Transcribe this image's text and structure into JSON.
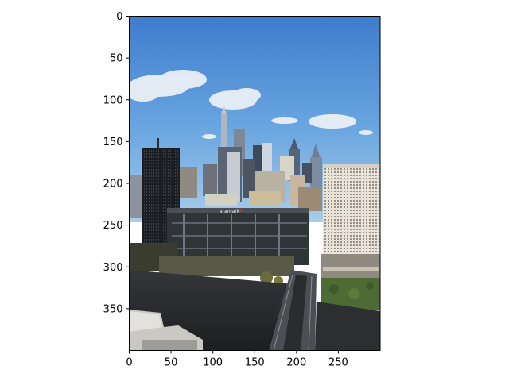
{
  "chart_data": {
    "type": "image",
    "title": "",
    "xlabel": "",
    "ylabel": "",
    "xlim": [
      0,
      300
    ],
    "ylim": [
      400,
      0
    ],
    "y_inverted": true,
    "xticks": [
      0,
      50,
      100,
      150,
      200,
      250
    ],
    "yticks": [
      0,
      50,
      100,
      150,
      200,
      250,
      300,
      350
    ],
    "grid": false,
    "legend": "none"
  },
  "photo": {
    "description_icon": "city-skyline-photo",
    "sign_text": "aramark",
    "palette": {
      "sky_top": "#3f7fcf",
      "sky_bottom": "#8fc0ea",
      "river": "#2a2c2e",
      "building_dark": "#1c1f24",
      "building_light": "#e6e2d8",
      "park": "#4f6b35",
      "sign": "#d9262c"
    }
  }
}
